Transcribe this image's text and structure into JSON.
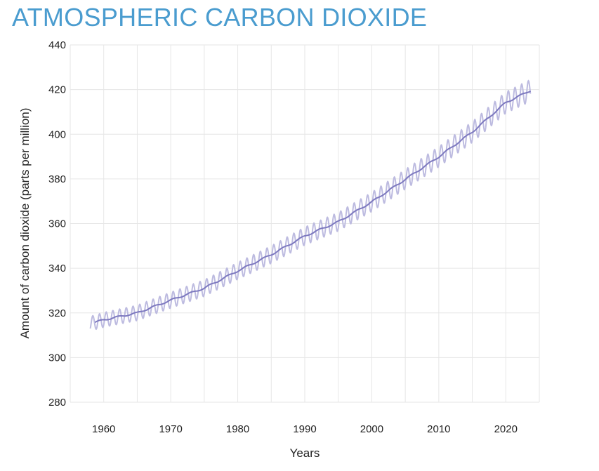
{
  "chart_data": {
    "type": "line",
    "title": "ATMOSPHERIC CARBON DIOXIDE",
    "xlabel": "Years",
    "ylabel": "Amount of carbon dioxide (parts per million)",
    "xlim": [
      1955,
      2025
    ],
    "ylim": [
      280,
      440
    ],
    "xticks": [
      1960,
      1970,
      1980,
      1990,
      2000,
      2010,
      2020
    ],
    "yticks": [
      280,
      300,
      320,
      340,
      360,
      380,
      400,
      420,
      440
    ],
    "grid": true,
    "colors": {
      "title": "#4a9ccf",
      "trend": "#7d79bf",
      "seasonal": "#bdbbe0",
      "grid": "#e6e6e6"
    },
    "seasonal_amplitude_ppm": 3.2,
    "series": [
      {
        "role": "monthly-seasonal",
        "x": [
          1958,
          1960,
          1965,
          1970,
          1975,
          1980,
          1985,
          1990,
          1995,
          2000,
          2005,
          2010,
          2015,
          2020,
          2023.7
        ],
        "y": [
          315.2,
          316.9,
          320.0,
          325.7,
          331.1,
          338.8,
          346.1,
          354.4,
          360.8,
          369.7,
          379.8,
          389.9,
          401.0,
          414.2,
          421.0
        ]
      },
      {
        "role": "deseasonalized-trend",
        "x": [
          1958,
          1960,
          1965,
          1970,
          1975,
          1980,
          1985,
          1990,
          1995,
          2000,
          2005,
          2010,
          2015,
          2020,
          2023.7
        ],
        "y": [
          315.2,
          316.9,
          320.0,
          325.7,
          331.1,
          338.8,
          346.1,
          354.4,
          360.8,
          369.7,
          379.8,
          389.9,
          401.0,
          414.2,
          419.6
        ]
      }
    ]
  }
}
